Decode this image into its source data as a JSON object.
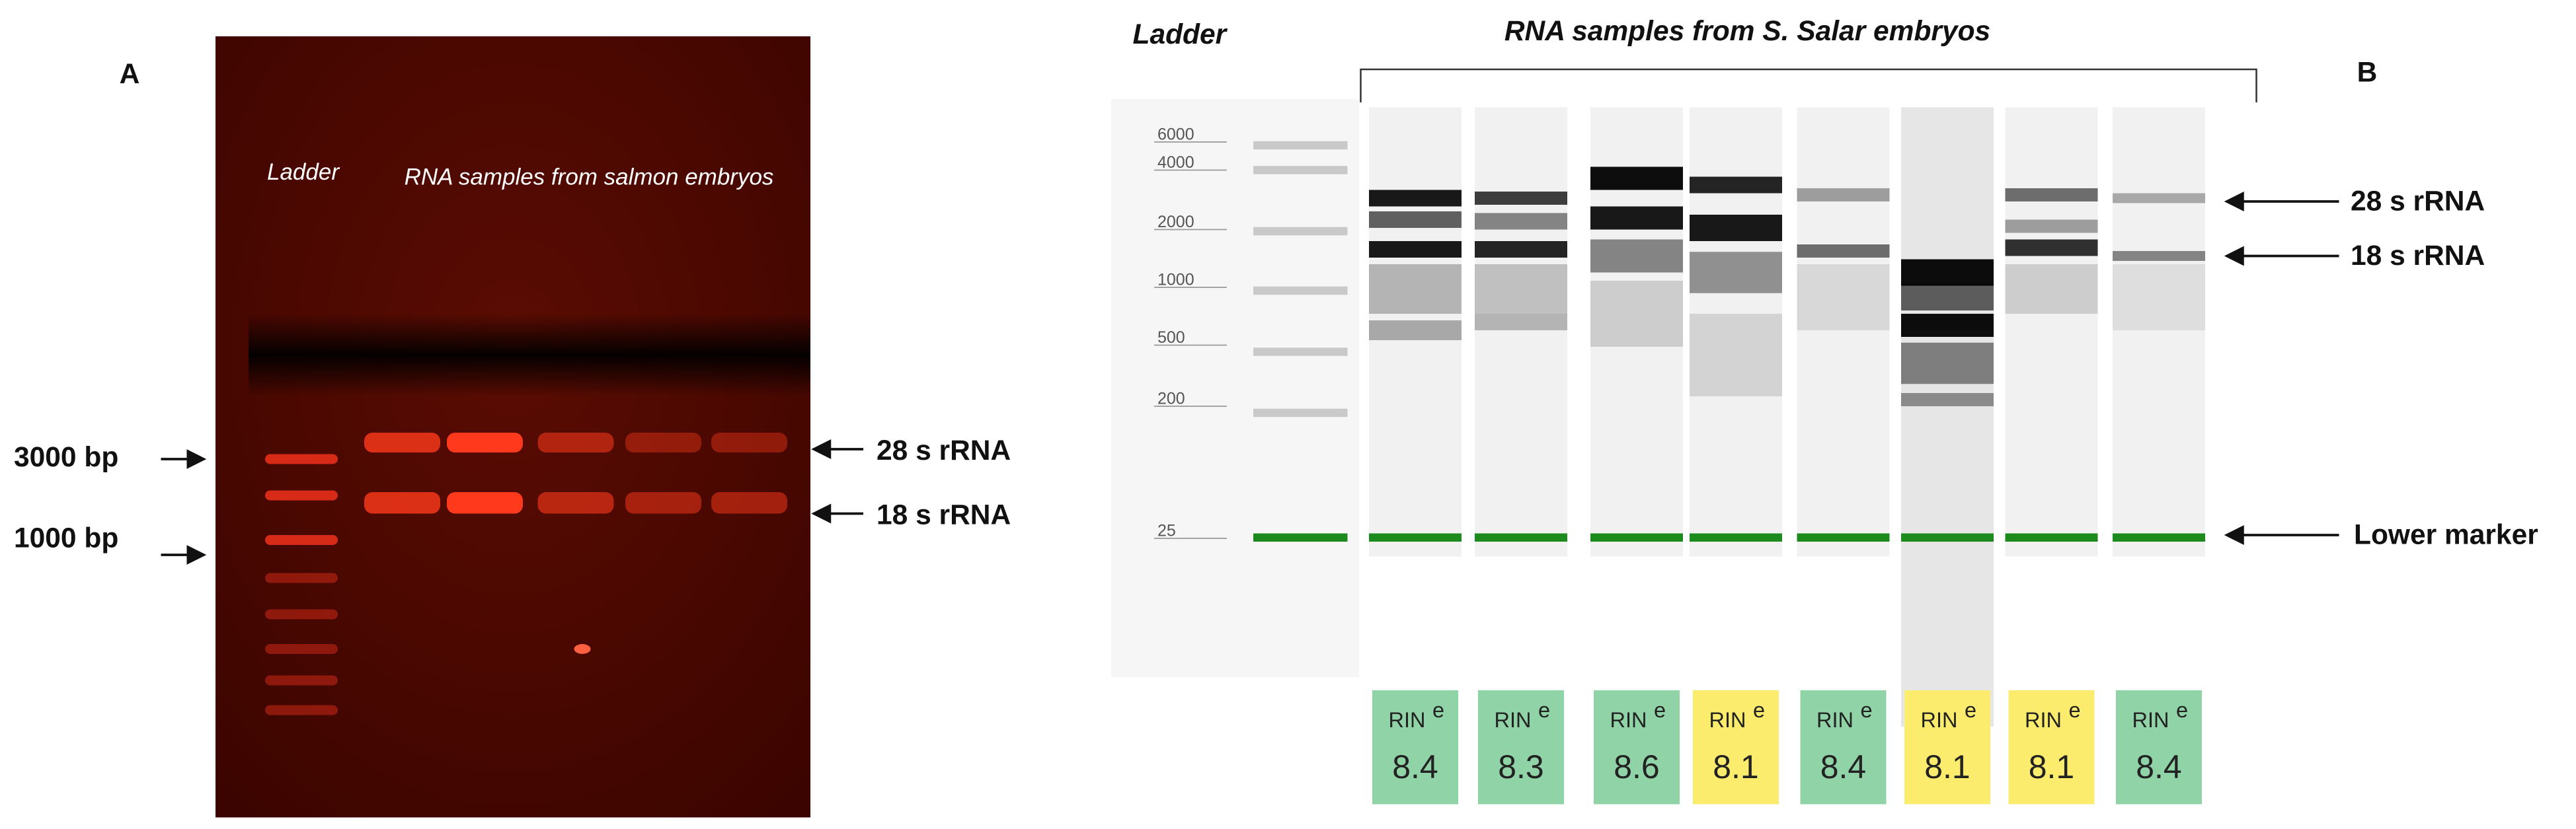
{
  "panel_a": {
    "label": "A",
    "ladder_label": "Ladder",
    "samples_label": "RNA samples from salmon embryos",
    "size_labels": [
      "3000 bp",
      "1000 bp"
    ],
    "band_labels": [
      "28 s rRNA",
      "18 s rRNA"
    ]
  },
  "panel_b": {
    "label": "B",
    "ladder_label": "Ladder",
    "samples_label": "RNA samples from S. Salar embryos",
    "ladder_sizes": [
      "6000",
      "4000",
      "2000",
      "1000",
      "500",
      "200",
      "25"
    ],
    "band_labels": [
      "28 s rRNA",
      "18 s rRNA",
      "Lower marker"
    ],
    "rin": [
      {
        "label": "RIN",
        "superscript": "e",
        "score": "8.4",
        "color": "#8fd3a6"
      },
      {
        "label": "RIN",
        "superscript": "e",
        "score": "8.3",
        "color": "#8fd3a6"
      },
      {
        "label": "RIN",
        "superscript": "e",
        "score": "8.6",
        "color": "#8fd3a6"
      },
      {
        "label": "RIN",
        "superscript": "e",
        "score": "8.1",
        "color": "#fcec6e"
      },
      {
        "label": "RIN",
        "superscript": "e",
        "score": "8.4",
        "color": "#8fd3a6"
      },
      {
        "label": "RIN",
        "superscript": "e",
        "score": "8.1",
        "color": "#fcec6e"
      },
      {
        "label": "RIN",
        "superscript": "e",
        "score": "8.1",
        "color": "#fcec6e"
      },
      {
        "label": "RIN",
        "superscript": "e",
        "score": "8.4",
        "color": "#8fd3a6"
      }
    ]
  }
}
